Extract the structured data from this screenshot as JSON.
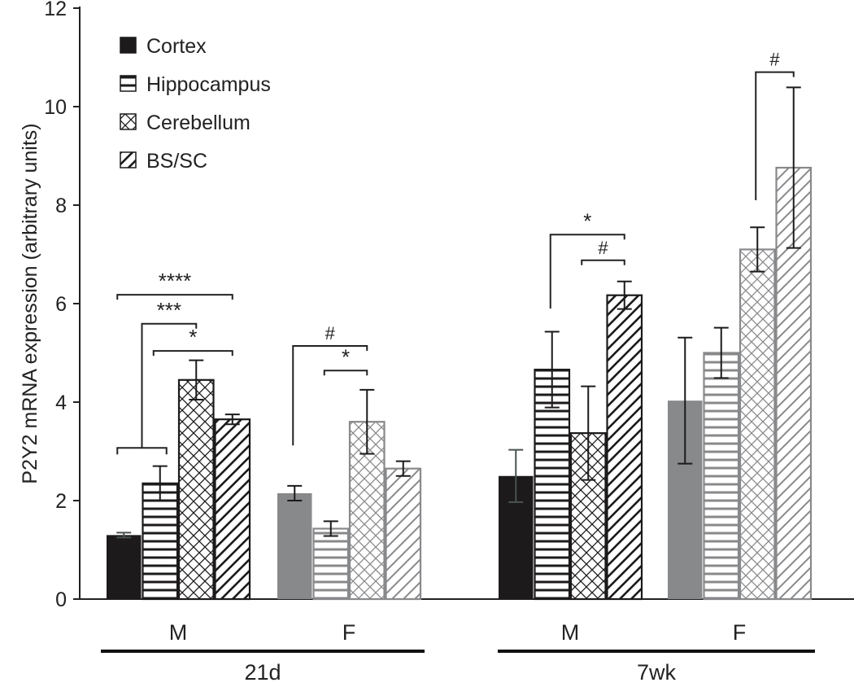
{
  "chart_data": {
    "type": "bar",
    "title": "",
    "ylabel": "P2Y2 mRNA expression (arbitrary units)",
    "xlabel": "",
    "ylim": [
      0,
      12
    ],
    "yticks": [
      "0",
      "2",
      "4",
      "6",
      "8",
      "10",
      "12"
    ],
    "grid": false,
    "legend_placement": "top-left",
    "series_names": [
      "Cortex",
      "Hippocampus",
      "Cerebellum",
      "BS/SC"
    ],
    "colors": {
      "male": "#1c1a1b",
      "female": "#88898b"
    },
    "groups": [
      {
        "age": "21d",
        "sex": "M",
        "values": [
          1.3,
          2.35,
          4.45,
          3.65
        ],
        "errors": [
          0.05,
          0.35,
          0.4,
          0.1
        ]
      },
      {
        "age": "21d",
        "sex": "F",
        "values": [
          2.15,
          1.43,
          3.6,
          2.65
        ],
        "errors": [
          0.15,
          0.15,
          0.65,
          0.15
        ]
      },
      {
        "age": "7wk",
        "sex": "M",
        "values": [
          2.5,
          4.66,
          3.37,
          6.17
        ],
        "errors": [
          0.53,
          0.77,
          0.95,
          0.28
        ]
      },
      {
        "age": "7wk",
        "sex": "F",
        "values": [
          4.03,
          5.0,
          7.1,
          8.76
        ],
        "errors": [
          1.28,
          0.51,
          0.45,
          1.63
        ]
      }
    ],
    "age_labels": [
      "21d",
      "7wk"
    ],
    "significance": [
      {
        "group": 0,
        "from": 0,
        "to": 3,
        "level": 6.18,
        "label": "****"
      },
      {
        "group": 0,
        "from": 0.5,
        "to": 2,
        "level": 5.59,
        "label": "***",
        "from_leg": 3.07,
        "sub": [
          0,
          1
        ]
      },
      {
        "group": 0,
        "from": 1,
        "to": 3,
        "level": 5.04,
        "label": "*"
      },
      {
        "group": 1,
        "from": 0,
        "to": 2,
        "level": 5.14,
        "label": "#",
        "from_leg": 3.12
      },
      {
        "group": 1,
        "from": 1,
        "to": 2,
        "level": 4.64,
        "label": "*"
      },
      {
        "group": 2,
        "from": 1,
        "to": 3,
        "level": 7.4,
        "label": "*",
        "from_leg": 5.9
      },
      {
        "group": 2,
        "from": 2,
        "to": 3,
        "level": 6.88,
        "label": "#"
      },
      {
        "group": 3,
        "from": 2,
        "to": 3,
        "level": 10.7,
        "label": "#",
        "from_leg": 8.1
      }
    ]
  }
}
